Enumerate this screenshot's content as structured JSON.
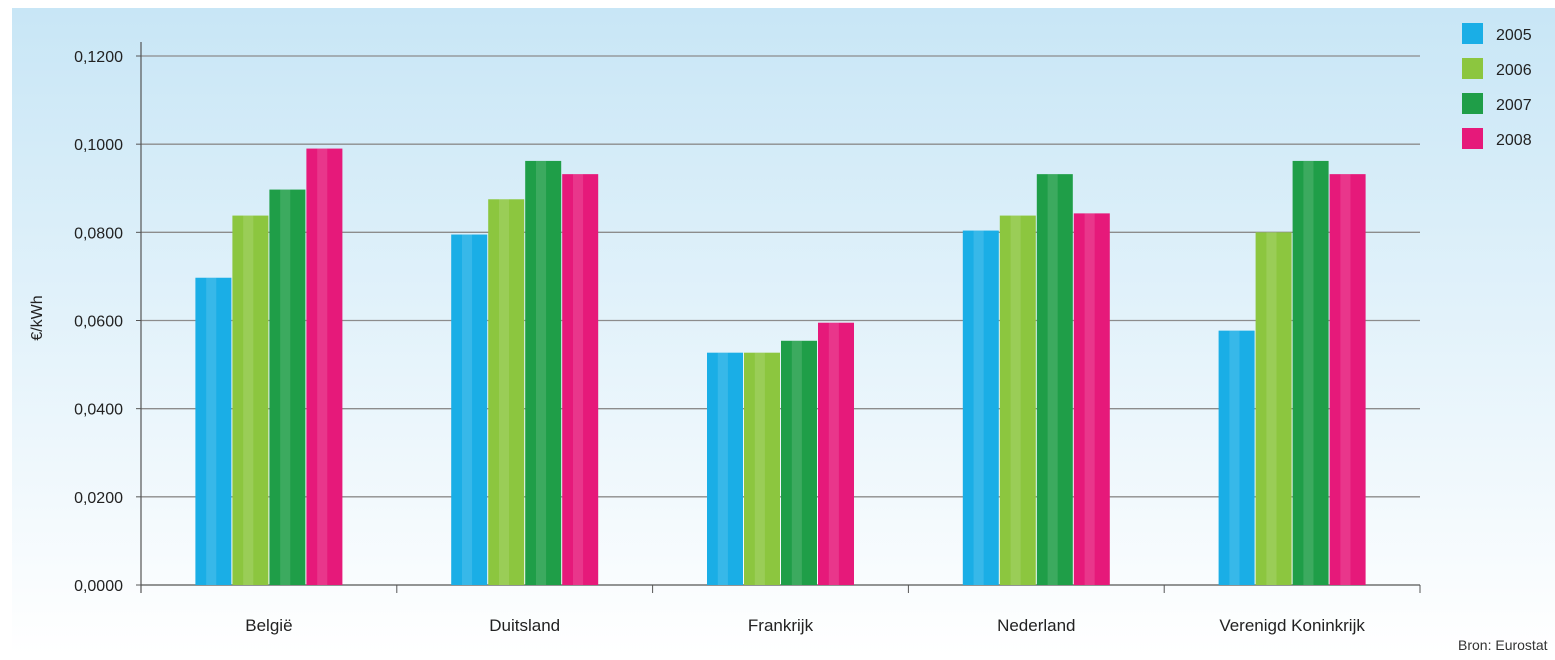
{
  "chart_data": {
    "type": "bar",
    "title": "",
    "xlabel": "",
    "ylabel": "€/kWh",
    "categories": [
      "België",
      "Duitsland",
      "Frankrijk",
      "Nederland",
      "Verenigd Koninkrijk"
    ],
    "series": [
      {
        "name": "2005",
        "color": "#1aaee6",
        "values": [
          0.0697,
          0.0795,
          0.0527,
          0.0804,
          0.0577
        ]
      },
      {
        "name": "2006",
        "color": "#8cc63f",
        "values": [
          0.0838,
          0.0875,
          0.0527,
          0.0838,
          0.08
        ]
      },
      {
        "name": "2007",
        "color": "#1f9e48",
        "values": [
          0.0897,
          0.0962,
          0.0554,
          0.0932,
          0.0962
        ]
      },
      {
        "name": "2008",
        "color": "#e6197a",
        "values": [
          0.099,
          0.0932,
          0.0595,
          0.0843,
          0.0932
        ]
      }
    ],
    "yticks": [
      "0,0000",
      "0,0200",
      "0,0400",
      "0,0600",
      "0,0800",
      "0,1000",
      "0,1200"
    ],
    "ylim": [
      0,
      0.12
    ],
    "grid": true,
    "legend_position": "top-right",
    "background_gradient": [
      "#c8e6f6",
      "#ffffff"
    ]
  },
  "source_note": "Bron: Eurostat"
}
